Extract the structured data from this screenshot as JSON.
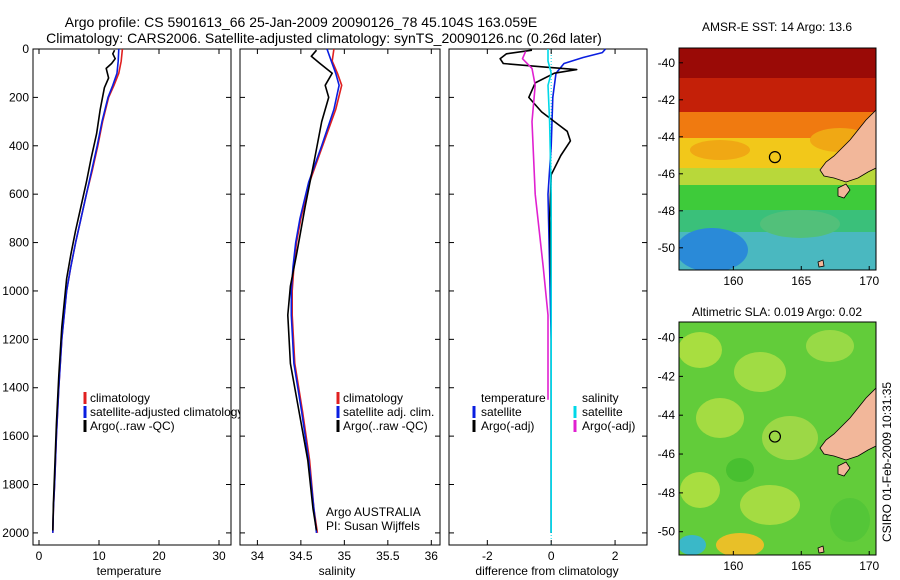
{
  "header": {
    "line1": "Argo profile: CS 5901613_66 25-Jan-2009 20090126_78 45.104S 163.059E",
    "line2": "Climatology: CARS2006. Satellite-adjusted climatology: synTS_20090126.nc (0.26d later)"
  },
  "side_stamp": "CSIRO 01-Feb-2009 10:31:35",
  "colors": {
    "climatology": "#e02020",
    "satellite": "#0a1ee0",
    "argo": "#000000",
    "satellite_salinity": "#00d8e8",
    "argo_salinity": "#e020d0",
    "land": "#f2b79a",
    "zero_line": "#00d8e8"
  },
  "chart_data": [
    {
      "type": "line",
      "id": "temperature",
      "xlabel": "temperature",
      "ylabel": "",
      "xlim": [
        -1,
        32
      ],
      "ylim": [
        2050,
        0
      ],
      "xticks": [
        0,
        10,
        20,
        30
      ],
      "yticks": [
        0,
        200,
        400,
        600,
        800,
        1000,
        1200,
        1400,
        1600,
        1800,
        2000
      ],
      "legend": {
        "placement": "lower-middle",
        "entries": [
          "climatology",
          "satellite-adjusted climatology",
          "Argo(..raw -QC)"
        ]
      },
      "series": [
        {
          "name": "climatology",
          "color_key": "climatology",
          "x": [
            13.9,
            13.7,
            13.3,
            12.5,
            11.6,
            10.6,
            9.8,
            8.9,
            7.9,
            7.0,
            6.1,
            5.3,
            4.6,
            3.8,
            3.3,
            2.9,
            2.6,
            2.4,
            2.3
          ],
          "y": [
            0,
            50,
            100,
            150,
            200,
            300,
            400,
            500,
            600,
            700,
            800,
            900,
            1000,
            1200,
            1400,
            1600,
            1800,
            1900,
            2000
          ]
        },
        {
          "name": "satellite-adjusted climatology",
          "color_key": "satellite",
          "x": [
            13.3,
            13.2,
            13.0,
            12.3,
            11.5,
            10.5,
            9.7,
            8.8,
            7.9,
            7.0,
            6.1,
            5.3,
            4.6,
            3.8,
            3.3,
            2.9,
            2.6,
            2.4,
            2.3
          ],
          "y": [
            0,
            50,
            100,
            150,
            200,
            300,
            400,
            500,
            600,
            700,
            800,
            900,
            1000,
            1200,
            1400,
            1600,
            1800,
            1900,
            2000
          ]
        },
        {
          "name": "Argo(..raw -QC)",
          "color_key": "argo",
          "x": [
            12.6,
            12.3,
            12.7,
            12.1,
            11.2,
            11.6,
            10.9,
            10.2,
            9.6,
            8.7,
            7.9,
            7.0,
            6.1,
            5.3,
            4.6,
            3.8,
            3.3,
            2.9,
            2.6,
            2.4,
            2.3
          ],
          "y": [
            5,
            20,
            40,
            60,
            80,
            120,
            160,
            250,
            350,
            450,
            550,
            650,
            750,
            850,
            950,
            1150,
            1350,
            1550,
            1750,
            1880,
            1990
          ]
        }
      ]
    },
    {
      "type": "line",
      "id": "salinity",
      "xlabel": "salinity",
      "ylabel": "",
      "xlim": [
        33.8,
        36.1
      ],
      "ylim": [
        2050,
        0
      ],
      "xticks": [
        34,
        34.5,
        35,
        35.5,
        36
      ],
      "legend": {
        "placement": "lower-right",
        "entries": [
          "climatology",
          "satellite adj. clim.",
          "Argo(..raw -QC)"
        ]
      },
      "annotation": [
        "Argo AUSTRALIA",
        "PI: Susan Wijffels"
      ],
      "series": [
        {
          "name": "climatology",
          "color_key": "climatology",
          "x": [
            34.88,
            34.86,
            34.92,
            34.97,
            34.9,
            34.75,
            34.6,
            34.5,
            34.45,
            34.42,
            34.4,
            34.4,
            34.43,
            34.52,
            34.6,
            34.65,
            34.69
          ],
          "y": [
            0,
            50,
            100,
            150,
            250,
            400,
            550,
            700,
            800,
            900,
            1000,
            1100,
            1300,
            1500,
            1700,
            1900,
            2000
          ]
        },
        {
          "name": "satellite adj. clim.",
          "color_key": "satellite",
          "x": [
            34.8,
            34.85,
            34.9,
            34.94,
            34.88,
            34.74,
            34.59,
            34.49,
            34.44,
            34.41,
            34.39,
            34.39,
            34.42,
            34.51,
            34.59,
            34.65,
            34.68
          ],
          "y": [
            0,
            50,
            100,
            150,
            250,
            400,
            550,
            700,
            800,
            900,
            1000,
            1100,
            1300,
            1500,
            1700,
            1900,
            2000
          ]
        },
        {
          "name": "Argo(..raw -QC)",
          "color_key": "argo",
          "x": [
            34.68,
            34.62,
            34.72,
            34.86,
            34.78,
            34.82,
            34.74,
            34.66,
            34.55,
            34.45,
            34.38,
            34.35,
            34.38,
            34.48,
            34.58,
            34.64,
            34.68
          ],
          "y": [
            5,
            30,
            60,
            100,
            150,
            200,
            300,
            450,
            650,
            850,
            980,
            1100,
            1300,
            1500,
            1700,
            1900,
            1990
          ]
        }
      ]
    },
    {
      "type": "line",
      "id": "difference",
      "xlabel": "difference from climatology",
      "ylabel": "",
      "xlim": [
        -3.2,
        3.0
      ],
      "ylim": [
        2050,
        0
      ],
      "xticks": [
        -2,
        0,
        2
      ],
      "legend": {
        "placement": "lower-middle",
        "temperature_heading": "temperature",
        "salinity_heading": "salinity",
        "temperature_entries": [
          "satellite",
          "Argo(-adj)"
        ],
        "salinity_entries": [
          "satellite",
          "Argo(-adj)"
        ]
      },
      "series": [
        {
          "name": "temperature satellite",
          "color_key": "satellite",
          "x": [
            1.7,
            1.6,
            1.0,
            0.4,
            0.15,
            0.05,
            0.0,
            -0.1,
            -0.05,
            0.0,
            0.0,
            0.0,
            0.0
          ],
          "y": [
            0,
            15,
            35,
            60,
            100,
            200,
            400,
            600,
            900,
            1200,
            1500,
            1800,
            2000
          ]
        },
        {
          "name": "Argo temperature (-adj)",
          "color_key": "argo",
          "x": [
            -0.6,
            -1.4,
            -1.6,
            -1.5,
            -0.2,
            0.8,
            0.1,
            -0.5,
            -0.7,
            -0.3,
            0.1,
            0.5,
            0.6,
            0.3,
            0.0,
            -0.05,
            0.0,
            0.0,
            0.0
          ],
          "y": [
            5,
            20,
            40,
            60,
            75,
            85,
            100,
            140,
            200,
            260,
            300,
            340,
            380,
            440,
            520,
            700,
            1000,
            1500,
            2000
          ]
        },
        {
          "name": "salinity satellite",
          "color_key": "satellite_salinity",
          "x": [
            -0.1,
            -0.1,
            0.0,
            -0.1,
            -0.05,
            0.0,
            0.0,
            0.0,
            0.0
          ],
          "y": [
            0,
            50,
            100,
            150,
            300,
            600,
            1000,
            1500,
            2000
          ]
        },
        {
          "name": "Argo salinity (-adj)",
          "color_key": "argo_salinity",
          "x": [
            -0.8,
            -0.9,
            -0.6,
            -0.5,
            -0.6,
            -0.5,
            -0.25,
            -0.1,
            -0.1,
            -0.1
          ],
          "y": [
            10,
            40,
            80,
            150,
            300,
            600,
            900,
            1100,
            1300,
            1450
          ]
        }
      ]
    }
  ],
  "maps": [
    {
      "id": "sst",
      "title": "AMSR-E SST: 14 Argo: 13.6",
      "xlim": [
        156,
        170.5
      ],
      "ylim": [
        -51.2,
        -39.2
      ],
      "xticks": [
        160,
        165,
        170
      ],
      "yticks": [
        -40,
        -42,
        -44,
        -46,
        -48,
        -50
      ],
      "float_position": {
        "lon": 163.06,
        "lat": -45.1
      }
    },
    {
      "id": "sla",
      "title": "Altimetric SLA: 0.019 Argo: 0.02",
      "xlim": [
        156,
        170.5
      ],
      "ylim": [
        -51.2,
        -39.2
      ],
      "xticks": [
        160,
        165,
        170
      ],
      "yticks": [
        -40,
        -42,
        -44,
        -46,
        -48,
        -50
      ],
      "float_position": {
        "lon": 163.06,
        "lat": -45.1
      }
    }
  ]
}
